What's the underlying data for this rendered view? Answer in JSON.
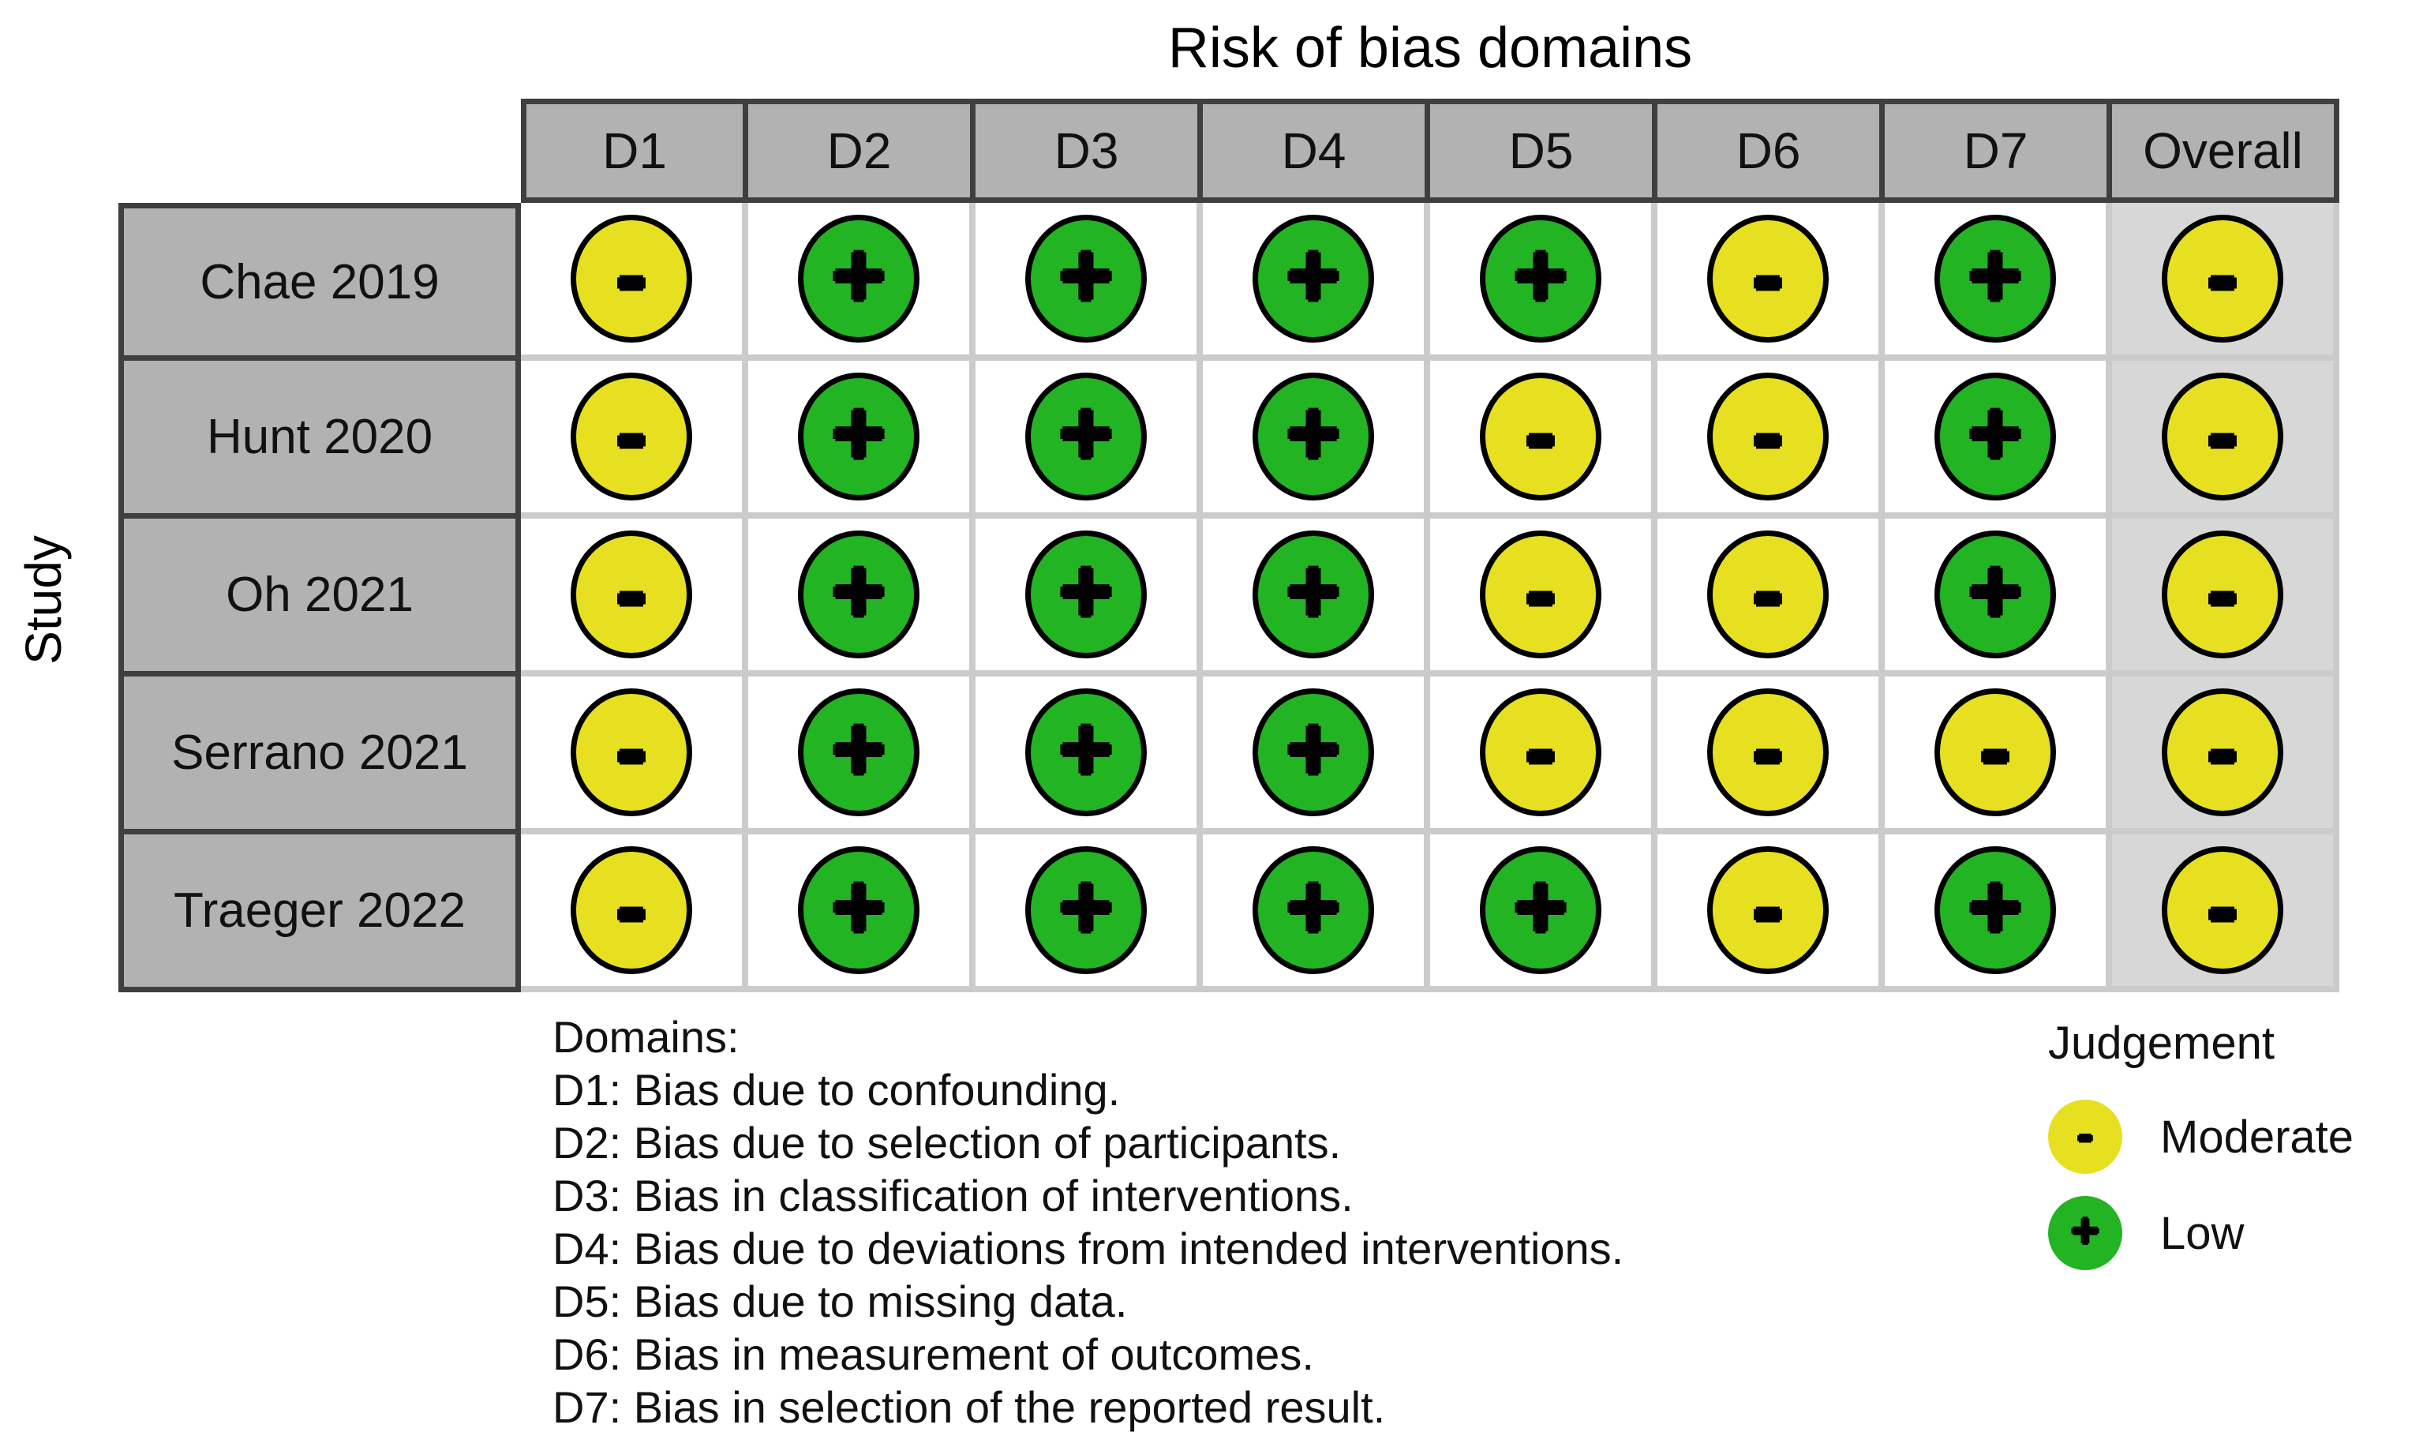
{
  "chart_data": {
    "type": "heatmap",
    "subtype": "risk-of-bias-traffic-light",
    "title": "Risk of bias domains",
    "ylabel": "Study",
    "columns": [
      "D1",
      "D2",
      "D3",
      "D4",
      "D5",
      "D6",
      "D7",
      "Overall"
    ],
    "rows": [
      {
        "study": "Chae 2019",
        "cells": [
          {
            "j": "moderate",
            "s": "-"
          },
          {
            "j": "low",
            "s": "+"
          },
          {
            "j": "low",
            "s": "+"
          },
          {
            "j": "low",
            "s": "+"
          },
          {
            "j": "low",
            "s": "+"
          },
          {
            "j": "moderate",
            "s": "-"
          },
          {
            "j": "low",
            "s": "+"
          },
          {
            "j": "moderate",
            "s": "-"
          }
        ]
      },
      {
        "study": "Hunt 2020",
        "cells": [
          {
            "j": "moderate",
            "s": "-"
          },
          {
            "j": "low",
            "s": "+"
          },
          {
            "j": "low",
            "s": "+"
          },
          {
            "j": "low",
            "s": "+"
          },
          {
            "j": "moderate",
            "s": "-"
          },
          {
            "j": "moderate",
            "s": "-"
          },
          {
            "j": "low",
            "s": "+"
          },
          {
            "j": "moderate",
            "s": "-"
          }
        ]
      },
      {
        "study": "Oh 2021",
        "cells": [
          {
            "j": "moderate",
            "s": "-"
          },
          {
            "j": "low",
            "s": "+"
          },
          {
            "j": "low",
            "s": "+"
          },
          {
            "j": "low",
            "s": "+"
          },
          {
            "j": "moderate",
            "s": "-"
          },
          {
            "j": "moderate",
            "s": "-"
          },
          {
            "j": "low",
            "s": "+"
          },
          {
            "j": "moderate",
            "s": "-"
          }
        ]
      },
      {
        "study": "Serrano 2021",
        "cells": [
          {
            "j": "moderate",
            "s": "-"
          },
          {
            "j": "low",
            "s": "+"
          },
          {
            "j": "low",
            "s": "+"
          },
          {
            "j": "low",
            "s": "+"
          },
          {
            "j": "moderate",
            "s": "-"
          },
          {
            "j": "moderate",
            "s": "-"
          },
          {
            "j": "moderate",
            "s": "-"
          },
          {
            "j": "moderate",
            "s": "-"
          }
        ]
      },
      {
        "study": "Traeger 2022",
        "cells": [
          {
            "j": "moderate",
            "s": "-"
          },
          {
            "j": "low",
            "s": "+"
          },
          {
            "j": "low",
            "s": "+"
          },
          {
            "j": "low",
            "s": "+"
          },
          {
            "j": "low",
            "s": "+"
          },
          {
            "j": "moderate",
            "s": "-"
          },
          {
            "j": "low",
            "s": "+"
          },
          {
            "j": "moderate",
            "s": "-"
          }
        ]
      }
    ],
    "legend_position": "bottom-right",
    "judgement_labels": {
      "moderate": "Moderate",
      "low": "Low"
    }
  },
  "colors": {
    "low": "#22b422",
    "moderate": "#e7e020",
    "header_bg": "#b2b2b2",
    "overall_column_bg": "#d7d7d7",
    "dark_border": "#3f3f3f",
    "grid_line": "#cbcbcb"
  },
  "legend_domains": {
    "heading": "Domains:",
    "items": [
      "D1: Bias due to confounding.",
      "D2: Bias due to selection of participants.",
      "D3: Bias in classification of interventions.",
      "D4: Bias due to deviations from intended interventions.",
      "D5: Bias due to missing data.",
      "D6: Bias in measurement of outcomes.",
      "D7: Bias in selection of the reported result."
    ]
  },
  "judgement_legend": {
    "title": "Judgement",
    "items": [
      {
        "key": "moderate",
        "symbol": "-",
        "label": "Moderate"
      },
      {
        "key": "low",
        "symbol": "+",
        "label": "Low"
      }
    ]
  }
}
